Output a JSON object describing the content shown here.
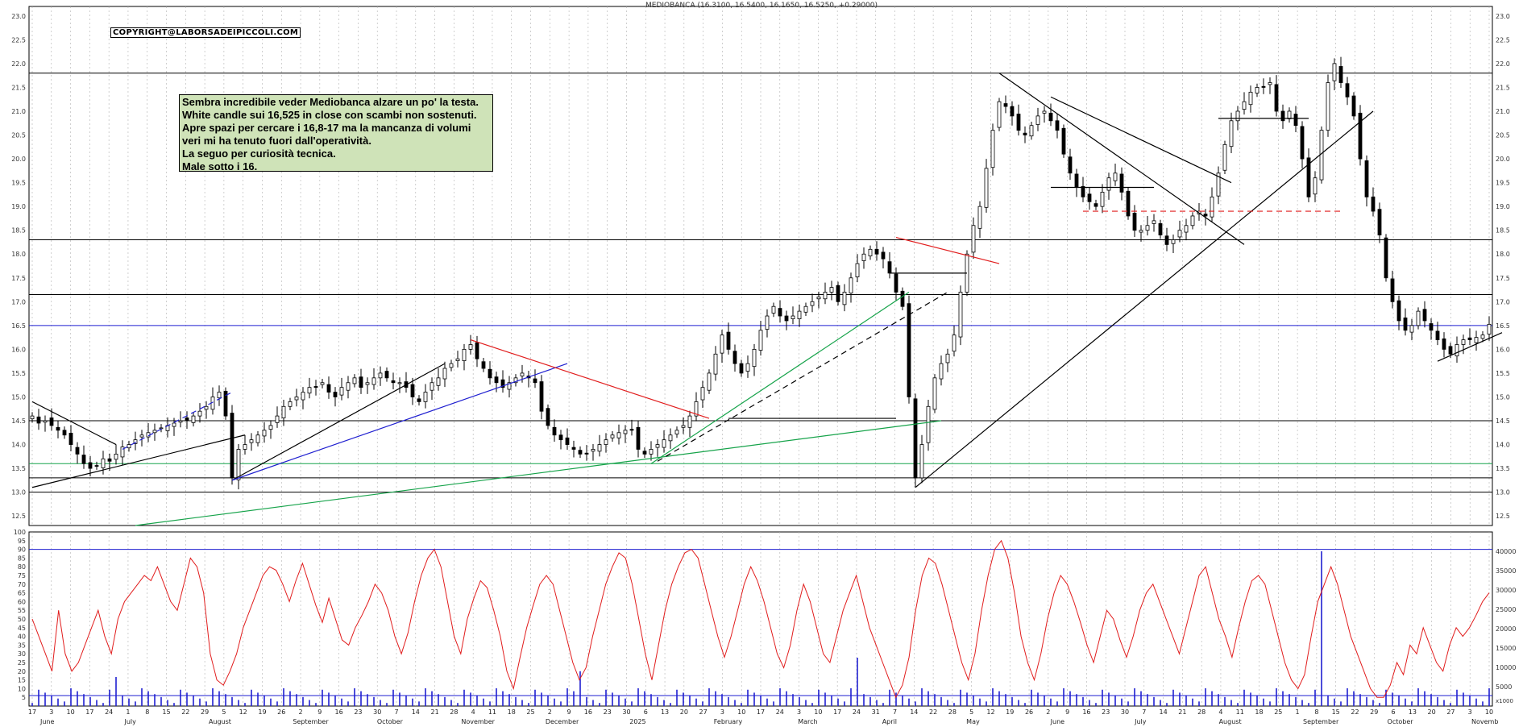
{
  "chart_data": [
    {
      "type": "candlestick",
      "title": "MEDIOBANCA (16.3100, 16.5400, 16.1650, 16.5250, +0.29000)",
      "copyright": "COPYRIGHT@LABORSADEIPICCOLI.COM",
      "annotation": [
        "Sembra incredibile veder Mediobanca alzare un po' la testa.",
        "White candle sui 16,525 in close con scambi non sostenuti.",
        "Apre spazi per cercare i 16,8-17 ma la mancanza di volumi",
        "veri mi ha tenuto fuori dall'operatività.",
        "La seguo per curiosità tecnica.",
        "Male sotto i 16."
      ],
      "ylim": [
        12.3,
        23.2
      ],
      "y_ticks": [
        "12.5",
        "13.0",
        "13.5",
        "14.0",
        "14.5",
        "15.0",
        "15.5",
        "16.0",
        "16.5",
        "17.0",
        "17.5",
        "18.0",
        "18.5",
        "19.0",
        "19.5",
        "20.0",
        "20.5",
        "21.0",
        "21.5",
        "22.0",
        "22.5",
        "23.0"
      ],
      "x_ticks": [
        "17",
        "3",
        "10",
        "17",
        "24",
        "1",
        "8",
        "15",
        "22",
        "29",
        "5",
        "12",
        "19",
        "26",
        "2",
        "9",
        "16",
        "23",
        "30",
        "7",
        "14",
        "21",
        "28",
        "4",
        "11",
        "18",
        "25",
        "2",
        "9",
        "16",
        "23",
        "30",
        "6",
        "13",
        "20",
        "27",
        "3",
        "10",
        "17",
        "24",
        "3",
        "10",
        "17",
        "24",
        "31",
        "7",
        "14",
        "22",
        "28",
        "5",
        "12",
        "19",
        "26",
        "2",
        "9",
        "16",
        "23",
        "30",
        "7",
        "14",
        "21",
        "28",
        "4",
        "11",
        "18",
        "25",
        "1",
        "8",
        "15",
        "22",
        "29",
        "6",
        "13",
        "20",
        "27",
        "3",
        "10"
      ],
      "x_months": [
        "June",
        "July",
        "August",
        "September",
        "October",
        "November",
        "December",
        "2025",
        "February",
        "March",
        "April",
        "May",
        "June",
        "July",
        "August",
        "September",
        "October",
        "Novemb"
      ],
      "close_series": [
        14.6,
        14.45,
        14.5,
        14.4,
        14.3,
        14.2,
        14.0,
        13.8,
        13.6,
        13.5,
        13.55,
        13.7,
        13.65,
        13.8,
        13.95,
        14.0,
        14.1,
        14.2,
        14.25,
        14.3,
        14.35,
        14.4,
        14.45,
        14.5,
        14.5,
        14.6,
        14.7,
        14.8,
        15.0,
        15.1,
        14.6,
        13.3,
        13.9,
        14.0,
        14.1,
        14.2,
        14.3,
        14.4,
        14.6,
        14.8,
        14.9,
        15.0,
        15.1,
        15.2,
        15.2,
        15.3,
        15.1,
        15.0,
        15.2,
        15.3,
        15.4,
        15.2,
        15.3,
        15.4,
        15.5,
        15.4,
        15.3,
        15.3,
        15.2,
        15.0,
        14.9,
        15.1,
        15.3,
        15.4,
        15.6,
        15.7,
        15.8,
        16.0,
        16.1,
        15.8,
        15.6,
        15.4,
        15.3,
        15.2,
        15.3,
        15.4,
        15.5,
        15.4,
        15.3,
        14.7,
        14.4,
        14.2,
        14.1,
        14.0,
        13.9,
        13.8,
        13.8,
        13.9,
        14.0,
        14.1,
        14.2,
        14.25,
        14.3,
        14.3,
        13.9,
        13.8,
        13.9,
        14.0,
        14.1,
        14.2,
        14.3,
        14.4,
        14.6,
        14.9,
        15.2,
        15.5,
        15.9,
        16.3,
        16.0,
        15.7,
        15.5,
        15.7,
        16.0,
        16.4,
        16.7,
        16.9,
        16.7,
        16.6,
        16.7,
        16.8,
        16.9,
        17.0,
        17.1,
        17.2,
        17.3,
        17.0,
        17.2,
        17.5,
        17.8,
        18.0,
        18.1,
        18.0,
        17.9,
        17.6,
        17.2,
        16.9,
        15.0,
        13.3,
        14.0,
        14.8,
        15.4,
        15.7,
        15.9,
        16.3,
        17.2,
        18.0,
        18.6,
        19.0,
        19.8,
        20.6,
        21.2,
        21.1,
        20.9,
        20.6,
        20.5,
        20.7,
        20.9,
        21.0,
        20.8,
        20.6,
        20.1,
        19.7,
        19.4,
        19.2,
        19.1,
        19.0,
        19.3,
        19.6,
        19.7,
        19.3,
        18.8,
        18.5,
        18.5,
        18.6,
        18.7,
        18.4,
        18.2,
        18.3,
        18.5,
        18.6,
        18.8,
        18.9,
        18.8,
        19.2,
        19.7,
        20.3,
        20.8,
        21.0,
        21.2,
        21.4,
        21.5,
        21.5,
        21.6,
        21.0,
        20.8,
        21.0,
        20.7,
        20.0,
        19.2,
        19.6,
        20.6,
        21.6,
        22.0,
        21.6,
        21.3,
        20.9,
        20.0,
        19.2,
        18.9,
        18.4,
        17.5,
        17.0,
        16.6,
        16.4,
        16.5,
        16.8,
        16.6,
        16.4,
        16.2,
        16.0,
        15.9,
        16.1,
        16.2,
        16.2,
        16.25,
        16.3,
        16.525
      ],
      "reference_lines": [
        {
          "y": 21.8,
          "color": "#000000"
        },
        {
          "y": 18.3,
          "color": "#000000"
        },
        {
          "y": 17.15,
          "color": "#000000"
        },
        {
          "y": 16.5,
          "color": "#1f1fd0"
        },
        {
          "y": 14.5,
          "color": "#000000"
        },
        {
          "y": 13.6,
          "color": "#16a34a"
        },
        {
          "y": 13.3,
          "color": "#000000"
        },
        {
          "y": 13.0,
          "color": "#000000"
        }
      ],
      "trendlines": [
        {
          "from": [
            0,
            14.9
          ],
          "to": [
            13,
            14.0
          ],
          "color": "#000000"
        },
        {
          "from": [
            0,
            13.1
          ],
          "to": [
            33,
            14.2
          ],
          "color": "#000000"
        },
        {
          "from": [
            31,
            13.25
          ],
          "to": [
            64,
            15.7
          ],
          "color": "#000000"
        },
        {
          "from": [
            31,
            13.25
          ],
          "to": [
            83,
            15.7
          ],
          "color": "#1f1fd0"
        },
        {
          "from": [
            14,
            13.9
          ],
          "to": [
            31,
            15.1
          ],
          "color": "#1f1fd0",
          "dash": true
        },
        {
          "from": [
            68,
            16.2
          ],
          "to": [
            105,
            14.55
          ],
          "color": "#e11d1d"
        },
        {
          "from": [
            16,
            12.3
          ],
          "to": [
            141,
            14.5
          ],
          "color": "#16a34a"
        },
        {
          "from": [
            96,
            13.6
          ],
          "to": [
            136,
            17.2
          ],
          "color": "#16a34a"
        },
        {
          "from": [
            97,
            13.65
          ],
          "to": [
            142,
            17.2
          ],
          "color": "#000000",
          "dash": true
        },
        {
          "from": [
            134,
            18.35
          ],
          "to": [
            150,
            17.8
          ],
          "color": "#e11d1d"
        },
        {
          "from": [
            137,
            13.1
          ],
          "to": [
            208,
            21.0
          ],
          "color": "#000000"
        },
        {
          "from": [
            150,
            21.8
          ],
          "to": [
            188,
            18.2
          ],
          "color": "#000000"
        },
        {
          "from": [
            158,
            21.3
          ],
          "to": [
            186,
            19.5
          ],
          "color": "#000000"
        },
        {
          "from": [
            163,
            18.9
          ],
          "to": [
            203,
            18.9
          ],
          "color": "#e11d1d",
          "dash": true
        },
        {
          "from": [
            133,
            17.6
          ],
          "to": [
            145,
            17.6
          ],
          "color": "#000000"
        },
        {
          "from": [
            108,
            14.55
          ],
          "to": [
            134,
            14.55
          ],
          "color": "#000000"
        },
        {
          "from": [
            158,
            19.4
          ],
          "to": [
            174,
            19.4
          ],
          "color": "#000000"
        },
        {
          "from": [
            184,
            20.85
          ],
          "to": [
            198,
            20.85
          ],
          "color": "#000000"
        },
        {
          "from": [
            218,
            15.75
          ],
          "to": [
            228,
            16.35
          ],
          "color": "#000000"
        }
      ]
    },
    {
      "type": "line",
      "name": "oscillator",
      "ylim": [
        0,
        100
      ],
      "y_ticks": [
        "5",
        "10",
        "15",
        "20",
        "25",
        "30",
        "35",
        "40",
        "45",
        "50",
        "55",
        "60",
        "65",
        "70",
        "75",
        "80",
        "85",
        "90",
        "95",
        "100"
      ],
      "reference_lines": [
        {
          "y": 90,
          "color": "#1f1fd0"
        },
        {
          "y": 6,
          "color": "#1f1fd0"
        }
      ],
      "series_color": "#e11d1d",
      "values": [
        50,
        40,
        30,
        20,
        55,
        30,
        20,
        25,
        35,
        45,
        55,
        40,
        30,
        50,
        60,
        65,
        70,
        75,
        72,
        80,
        70,
        60,
        55,
        70,
        85,
        80,
        65,
        30,
        15,
        12,
        20,
        30,
        45,
        55,
        65,
        75,
        80,
        78,
        70,
        60,
        72,
        82,
        70,
        58,
        48,
        62,
        50,
        38,
        35,
        45,
        52,
        60,
        70,
        65,
        55,
        40,
        30,
        42,
        60,
        75,
        85,
        90,
        80,
        60,
        40,
        30,
        50,
        62,
        72,
        68,
        55,
        40,
        20,
        10,
        28,
        45,
        58,
        70,
        75,
        70,
        55,
        40,
        25,
        15,
        22,
        40,
        55,
        70,
        80,
        88,
        85,
        70,
        50,
        30,
        15,
        35,
        55,
        70,
        80,
        88,
        90,
        85,
        70,
        55,
        40,
        28,
        40,
        55,
        70,
        80,
        72,
        60,
        45,
        30,
        22,
        35,
        55,
        70,
        60,
        45,
        30,
        25,
        40,
        55,
        65,
        75,
        60,
        45,
        35,
        25,
        15,
        5,
        12,
        28,
        55,
        75,
        85,
        82,
        70,
        55,
        40,
        25,
        15,
        30,
        55,
        75,
        90,
        95,
        85,
        65,
        40,
        25,
        15,
        30,
        50,
        65,
        75,
        70,
        60,
        48,
        35,
        25,
        40,
        55,
        50,
        38,
        28,
        40,
        55,
        65,
        70,
        60,
        50,
        40,
        30,
        45,
        60,
        75,
        80,
        65,
        50,
        40,
        28,
        45,
        60,
        72,
        75,
        70,
        55,
        40,
        25,
        15,
        10,
        18,
        40,
        60,
        70,
        80,
        70,
        55,
        40,
        30,
        20,
        10,
        5,
        5,
        12,
        25,
        18,
        35,
        30,
        45,
        35,
        25,
        20,
        35,
        45,
        40,
        45,
        52,
        60,
        65
      ]
    },
    {
      "type": "bar",
      "name": "volume",
      "ylim": [
        0,
        45000
      ],
      "y_ticks": [
        "5000",
        "10000",
        "15000",
        "20000",
        "25000",
        "30000",
        "35000",
        "40000"
      ],
      "series_color": "#1f1fd0",
      "spikes": [
        {
          "index": 13,
          "value": 7500
        },
        {
          "index": 85,
          "value": 9000
        },
        {
          "index": 128,
          "value": 12500
        },
        {
          "index": 200,
          "value": 40000
        }
      ]
    }
  ],
  "scale_label": "x1000"
}
